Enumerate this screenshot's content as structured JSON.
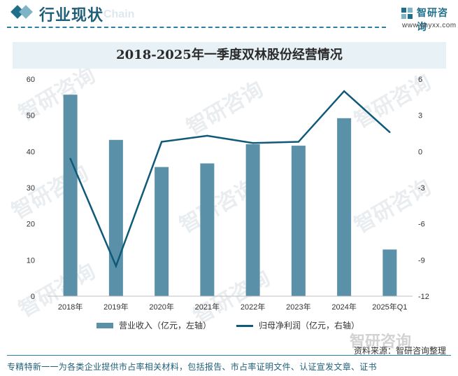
{
  "header": {
    "title": "行业现状",
    "subtitle": "Chain",
    "logo_name": "智研咨询",
    "logo_url": "www.chyxx.com"
  },
  "watermark": "智研咨询",
  "chart_data": {
    "type": "bar",
    "title": "2018-2025年一季度双林股份经营情况",
    "categories": [
      "2018年",
      "2019年",
      "2020年",
      "2021年",
      "2022年",
      "2023年",
      "2024年",
      "2025年Q1"
    ],
    "series": [
      {
        "name": "营业收入（亿元，左轴）",
        "type": "bar",
        "axis": "left",
        "color": "#5a91a8",
        "values": [
          55.7,
          43.2,
          35.7,
          36.7,
          42.0,
          41.6,
          49.2,
          12.9
        ]
      },
      {
        "name": "归母净利润（亿元，右轴）",
        "type": "line",
        "axis": "right",
        "color": "#0e5a78",
        "values": [
          -0.6,
          -9.5,
          0.8,
          1.3,
          0.7,
          0.8,
          5.0,
          1.6
        ]
      }
    ],
    "y_left": {
      "min": 0,
      "max": 60,
      "ticks": [
        0,
        10,
        20,
        30,
        40,
        50,
        60
      ]
    },
    "y_right": {
      "min": -12,
      "max": 6,
      "ticks": [
        -12,
        -9,
        -6,
        -3,
        0,
        3,
        6
      ]
    },
    "grid": false,
    "legend": "bottom"
  },
  "source": "资料来源：智研咨询整理",
  "footer": "专精特新一一为各类企业提供市占率相关材料，包括报告、市占率证明文件、认证宣发文章、证书"
}
